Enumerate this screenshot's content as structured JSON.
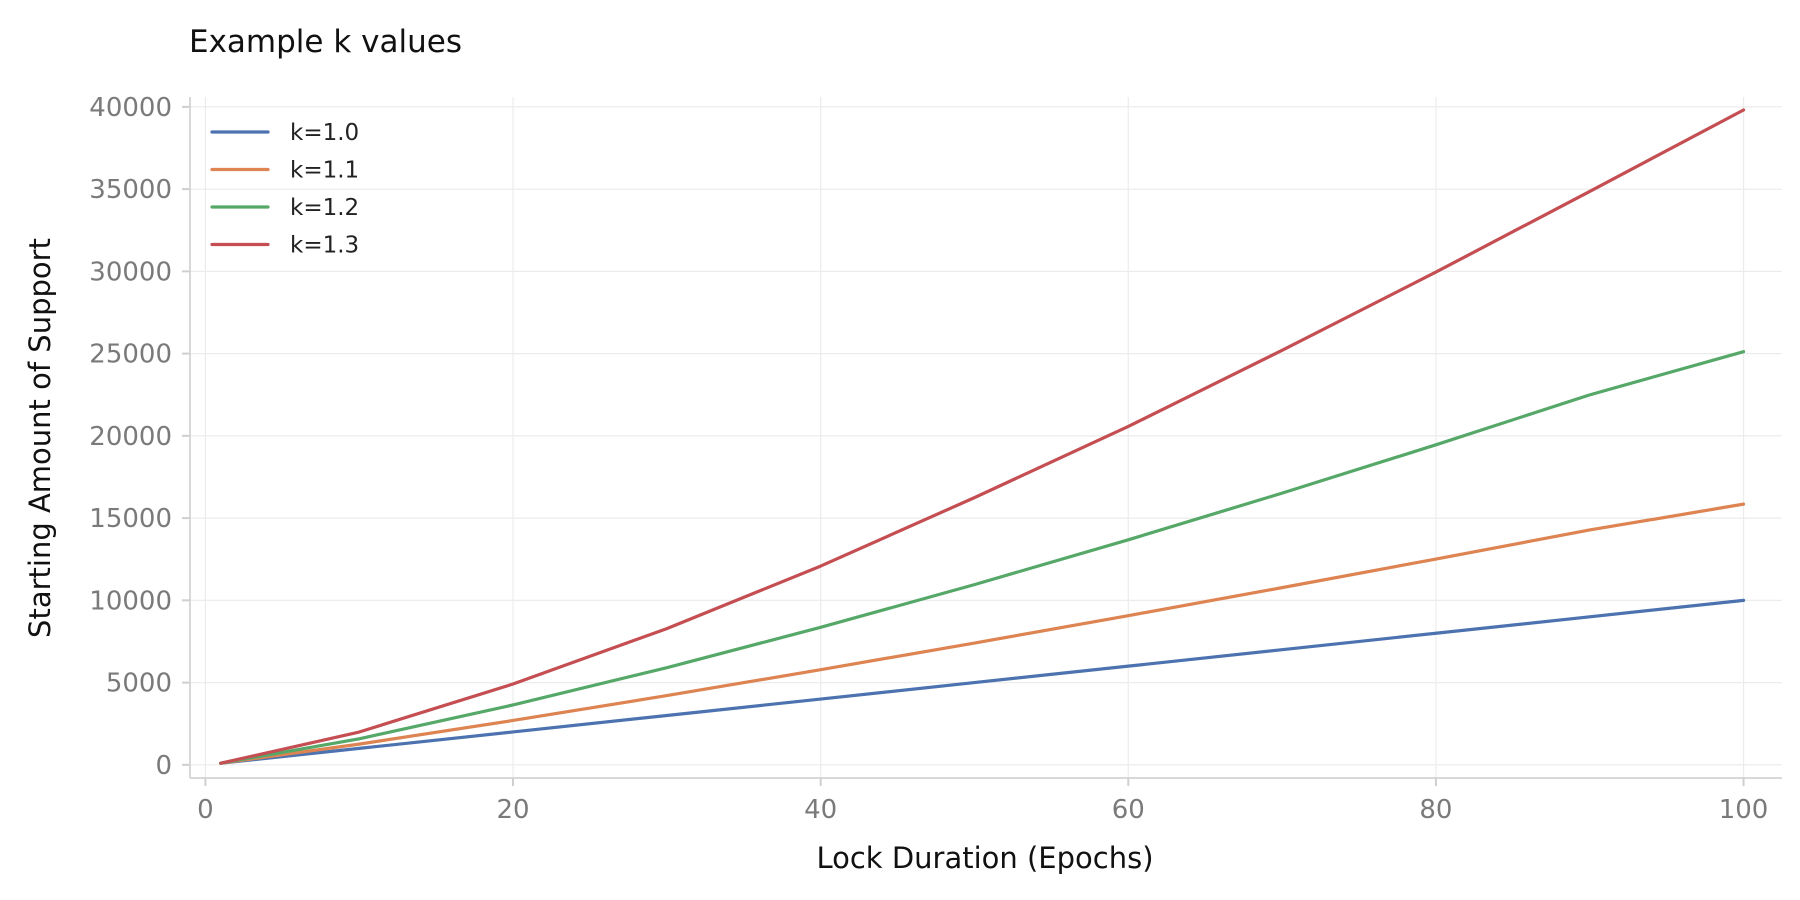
{
  "chart_data": {
    "type": "line",
    "title": "Example k values",
    "xlabel": "Lock Duration (Epochs)",
    "ylabel": "Starting Amount of Support",
    "xlim": [
      -1,
      102.5
    ],
    "ylim": [
      -800,
      40600
    ],
    "xticks": [
      0,
      20,
      40,
      60,
      80,
      100
    ],
    "xtick_labels": [
      "0",
      "20",
      "40",
      "60",
      "80",
      "100"
    ],
    "yticks": [
      0,
      5000,
      10000,
      15000,
      20000,
      25000,
      30000,
      35000,
      40000
    ],
    "ytick_labels": [
      "0",
      "5000",
      "10000",
      "15000",
      "20000",
      "25000",
      "30000",
      "35000",
      "40000"
    ],
    "grid": true,
    "legend_position": "top-left",
    "series": [
      {
        "name": "k=1.0",
        "color": "#4c72b0",
        "x": [
          1,
          10,
          20,
          30,
          40,
          50,
          60,
          70,
          80,
          90,
          100
        ],
        "y": [
          100,
          1000,
          2000,
          3000,
          4000,
          5000,
          6000,
          7000,
          8000,
          9000,
          10000
        ]
      },
      {
        "name": "k=1.1",
        "color": "#dd8452",
        "x": [
          1,
          10,
          20,
          30,
          40,
          50,
          60,
          70,
          80,
          90,
          100
        ],
        "y": [
          100,
          1259,
          2698,
          4210,
          5783,
          7405,
          9070,
          10773,
          12510,
          14277,
          15849
        ]
      },
      {
        "name": "k=1.2",
        "color": "#55a868",
        "x": [
          1,
          10,
          20,
          30,
          40,
          50,
          60,
          70,
          80,
          90,
          100
        ],
        "y": [
          100,
          1585,
          3641,
          5907,
          8359,
          10956,
          13680,
          16519,
          19457,
          22492,
          25119
        ]
      },
      {
        "name": "k=1.3",
        "color": "#c44e52",
        "x": [
          1,
          10,
          20,
          30,
          40,
          50,
          60,
          70,
          80,
          90,
          100
        ],
        "y": [
          100,
          1995,
          4914,
          8281,
          12082,
          16245,
          20570,
          25200,
          29956,
          34860,
          39811
        ]
      }
    ]
  }
}
